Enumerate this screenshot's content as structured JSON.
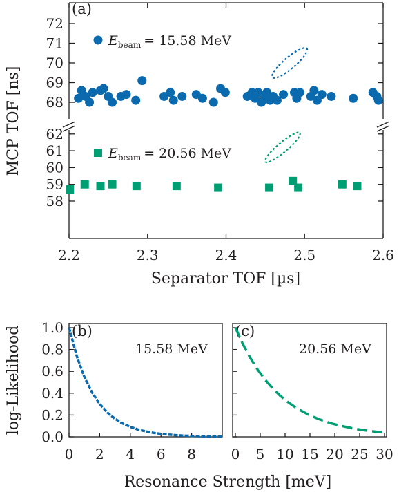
{
  "colors": {
    "blue": "#0a6aad",
    "green": "#009e73",
    "axis": "#231f20"
  },
  "chart_data": [
    {
      "panel_label": "(a)",
      "type": "scatter",
      "xlabel": "Separator TOF [µs]",
      "ylabel": "MCP TOF [ns]",
      "xlim": [
        2.2,
        2.6
      ],
      "xticks": [
        "2.2",
        "2.3",
        "2.4",
        "2.5",
        "2.6"
      ],
      "broken_y_axis": true,
      "upper_ylim": [
        67.5,
        72
      ],
      "upper_yticks": [
        "68",
        "69",
        "70",
        "71",
        "72"
      ],
      "lower_ylim": [
        57.5,
        62.5
      ],
      "lower_yticks": [
        "58",
        "59",
        "60",
        "61",
        "62"
      ],
      "series": [
        {
          "label_prefix": "E",
          "label_sub": "beam",
          "label_value": "= 15.58 MeV",
          "marker": "circle",
          "color": "#0a6aad",
          "ellipse": {
            "center": [
              2.481,
              70.0
            ],
            "rx": 0.013,
            "ry": 0.52,
            "angle": 40
          },
          "points": [
            [
              2.212,
              68.2
            ],
            [
              2.216,
              68.6
            ],
            [
              2.221,
              68.3
            ],
            [
              2.226,
              68.0
            ],
            [
              2.23,
              68.5
            ],
            [
              2.24,
              68.6
            ],
            [
              2.244,
              68.7
            ],
            [
              2.25,
              68.3
            ],
            [
              2.255,
              68.0
            ],
            [
              2.266,
              68.3
            ],
            [
              2.273,
              68.4
            ],
            [
              2.285,
              68.1
            ],
            [
              2.293,
              69.1
            ],
            [
              2.321,
              68.3
            ],
            [
              2.329,
              68.5
            ],
            [
              2.333,
              68.1
            ],
            [
              2.344,
              68.3
            ],
            [
              2.362,
              68.4
            ],
            [
              2.37,
              68.2
            ],
            [
              2.384,
              68.0
            ],
            [
              2.393,
              68.7
            ],
            [
              2.399,
              68.5
            ],
            [
              2.427,
              68.3
            ],
            [
              2.433,
              68.5
            ],
            [
              2.437,
              68.2
            ],
            [
              2.441,
              68.5
            ],
            [
              2.445,
              68.0
            ],
            [
              2.449,
              68.3
            ],
            [
              2.452,
              68.5
            ],
            [
              2.456,
              68.1
            ],
            [
              2.46,
              68.3
            ],
            [
              2.465,
              68.1
            ],
            [
              2.473,
              68.4
            ],
            [
              2.487,
              68.5
            ],
            [
              2.49,
              68.2
            ],
            [
              2.494,
              68.5
            ],
            [
              2.508,
              68.3
            ],
            [
              2.512,
              68.6
            ],
            [
              2.516,
              68.1
            ],
            [
              2.522,
              68.4
            ],
            [
              2.534,
              68.3
            ],
            [
              2.562,
              68.2
            ],
            [
              2.587,
              68.5
            ],
            [
              2.592,
              68.3
            ],
            [
              2.594,
              68.1
            ]
          ]
        },
        {
          "label_prefix": "E",
          "label_sub": "beam",
          "label_value": "= 20.56 MeV",
          "marker": "square",
          "color": "#009e73",
          "ellipse": {
            "center": [
              2.472,
              61.2
            ],
            "rx": 0.013,
            "ry": 0.52,
            "angle": 40
          },
          "points": [
            [
              2.201,
              58.7
            ],
            [
              2.22,
              59.0
            ],
            [
              2.24,
              58.9
            ],
            [
              2.255,
              59.0
            ],
            [
              2.286,
              58.9
            ],
            [
              2.337,
              58.9
            ],
            [
              2.39,
              58.8
            ],
            [
              2.455,
              58.8
            ],
            [
              2.485,
              59.2
            ],
            [
              2.492,
              58.8
            ],
            [
              2.548,
              59.0
            ],
            [
              2.567,
              58.9
            ]
          ]
        }
      ]
    },
    {
      "panel_label": "(b)",
      "type": "line",
      "annotation": "15.58 MeV",
      "ylabel": "log-Likelihood",
      "xlim": [
        0,
        10
      ],
      "xticks": [
        "0",
        "2",
        "4",
        "6",
        "8"
      ],
      "ylim": [
        0,
        1
      ],
      "yticks": [
        "0.0",
        "0.2",
        "0.4",
        "0.6",
        "0.8",
        "1.0"
      ],
      "color": "#0a6aad",
      "style": "dashed",
      "curve": {
        "x": [
          0,
          0.5,
          1,
          1.5,
          2,
          2.5,
          3,
          3.5,
          4,
          4.5,
          5,
          5.5,
          6,
          6.5,
          7,
          7.5,
          8,
          8.5,
          9,
          9.5,
          10
        ],
        "y": [
          1.0,
          0.741,
          0.549,
          0.407,
          0.301,
          0.223,
          0.165,
          0.122,
          0.091,
          0.067,
          0.05,
          0.037,
          0.027,
          0.02,
          0.015,
          0.011,
          0.008,
          0.006,
          0.004,
          0.003,
          0.002
        ]
      }
    },
    {
      "panel_label": "(c)",
      "type": "line",
      "annotation": "20.56 MeV",
      "xlim": [
        0,
        30
      ],
      "xticks": [
        "0",
        "5",
        "10",
        "15",
        "20",
        "25",
        "30"
      ],
      "ylim": [
        0,
        1
      ],
      "color": "#009e73",
      "style": "dashed",
      "curve": {
        "x": [
          0,
          1.5,
          3,
          4.5,
          6,
          7.5,
          9,
          10.5,
          12,
          13.5,
          15,
          16.5,
          18,
          19.5,
          21,
          22.5,
          24,
          25.5,
          27,
          28.5,
          30
        ],
        "y": [
          1.0,
          0.85,
          0.723,
          0.614,
          0.522,
          0.444,
          0.377,
          0.321,
          0.273,
          0.232,
          0.197,
          0.168,
          0.142,
          0.121,
          0.103,
          0.088,
          0.074,
          0.063,
          0.054,
          0.046,
          0.039
        ]
      }
    }
  ],
  "shared_xlabel_bottom": "Resonance Strength [meV]"
}
